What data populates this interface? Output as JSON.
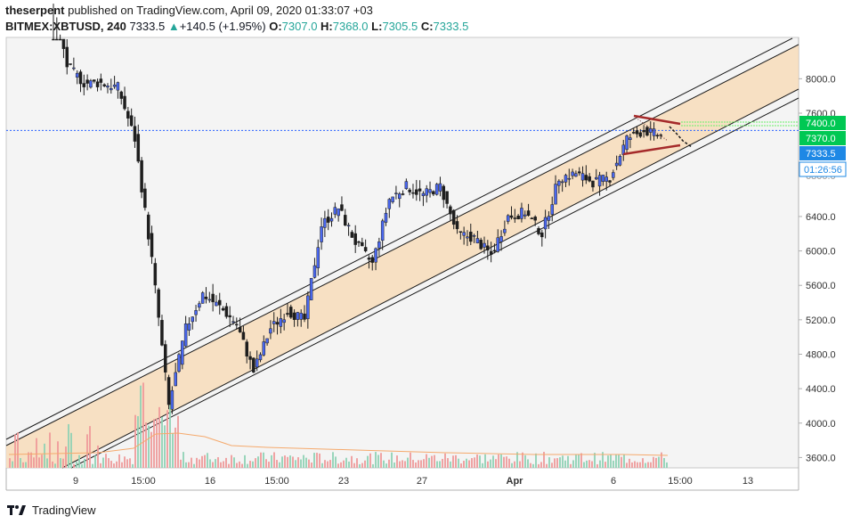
{
  "header": {
    "author": "theserpent",
    "published_text": "published on TradingView.com, April 09, 2020 01:33:07 +03",
    "symbol": "BITMEX:XBTUSD",
    "interval": "240",
    "last": "7333.5",
    "change": "+140.5 (+1.95%)",
    "o_label": "O:",
    "o_value": "7307.0",
    "h_label": "H:",
    "h_value": "7368.0",
    "l_label": "L:",
    "l_value": "7305.5",
    "c_label": "C:",
    "c_value": "7333.5"
  },
  "footer": {
    "brand": "TradingView"
  },
  "colors": {
    "up": "#4a68f0",
    "down": "#1e1e1e",
    "channel_fill": "#f7dcba",
    "vol_up": "#8fd1b5",
    "vol_down": "#ee9a9a",
    "ma": "#f5a96c",
    "current_price_badge": "#1e88e5",
    "level_badge": "#00c853",
    "triangle": "#a52a2a",
    "grid_bg": "#f4f4f4"
  },
  "chart_data": {
    "type": "candlestick",
    "symbol": "BITMEX:XBTUSD",
    "interval": "240",
    "y_axis": {
      "ticks": [
        "3600.0",
        "4000.0",
        "4400.0",
        "4800.0",
        "5200.0",
        "5600.0",
        "6000.0",
        "6400.0",
        "7600.0",
        "8000.0"
      ],
      "ylim": [
        3480,
        8480
      ]
    },
    "x_axis": {
      "ticks": [
        "9",
        "15:00",
        "16",
        "15:00",
        "23",
        "27",
        "Apr",
        "6",
        "15:00",
        "13"
      ]
    },
    "price_labels": [
      {
        "text": "7400.0",
        "value": 7400,
        "kind": "level"
      },
      {
        "text": "7370.0",
        "value": 7370,
        "kind": "level"
      },
      {
        "text": "7333.5",
        "value": 7333.5,
        "kind": "current"
      },
      {
        "text": "01:26:56",
        "kind": "countdown"
      }
    ],
    "dotted_level": 7400,
    "price_path": [
      {
        "date": "Mar 06",
        "price": 9100
      },
      {
        "date": "Mar 08",
        "price": 8150
      },
      {
        "date": "Mar 09",
        "price": 7950
      },
      {
        "date": "Mar 10",
        "price": 7950
      },
      {
        "date": "Mar 11",
        "price": 7900
      },
      {
        "date": "Mar 12",
        "price": 7300
      },
      {
        "date": "Mar 12",
        "price": 5900
      },
      {
        "date": "Mar 13",
        "price": 4200
      },
      {
        "date": "Mar 13",
        "price": 5100
      },
      {
        "date": "Mar 14",
        "price": 5500
      },
      {
        "date": "Mar 15",
        "price": 5350
      },
      {
        "date": "Mar 16",
        "price": 5150
      },
      {
        "date": "Mar 16",
        "price": 4600
      },
      {
        "date": "Mar 17",
        "price": 5100
      },
      {
        "date": "Mar 18",
        "price": 5300
      },
      {
        "date": "Mar 19",
        "price": 5200
      },
      {
        "date": "Mar 20",
        "price": 6300
      },
      {
        "date": "Mar 21",
        "price": 6500
      },
      {
        "date": "Mar 22",
        "price": 6100
      },
      {
        "date": "Mar 23",
        "price": 5850
      },
      {
        "date": "Mar 24",
        "price": 6600
      },
      {
        "date": "Mar 25",
        "price": 6750
      },
      {
        "date": "Mar 26",
        "price": 6650
      },
      {
        "date": "Mar 27",
        "price": 6750
      },
      {
        "date": "Mar 28",
        "price": 6200
      },
      {
        "date": "Mar 29",
        "price": 6150
      },
      {
        "date": "Mar 30",
        "price": 5950
      },
      {
        "date": "Mar 31",
        "price": 6400
      },
      {
        "date": "Apr 01",
        "price": 6450
      },
      {
        "date": "Apr 02",
        "price": 6200
      },
      {
        "date": "Apr 03",
        "price": 6850
      },
      {
        "date": "Apr 04",
        "price": 6900
      },
      {
        "date": "Apr 05",
        "price": 6800
      },
      {
        "date": "Apr 06",
        "price": 6850
      },
      {
        "date": "Apr 07",
        "price": 7300
      },
      {
        "date": "Apr 08",
        "price": 7400
      },
      {
        "date": "Apr 09",
        "price": 7333.5
      }
    ],
    "projection": [
      {
        "date": "Apr 09",
        "price": 7333.5
      },
      {
        "date": "Apr 09",
        "price": 7250
      },
      {
        "date": "Apr 10",
        "price": 7150
      }
    ]
  }
}
